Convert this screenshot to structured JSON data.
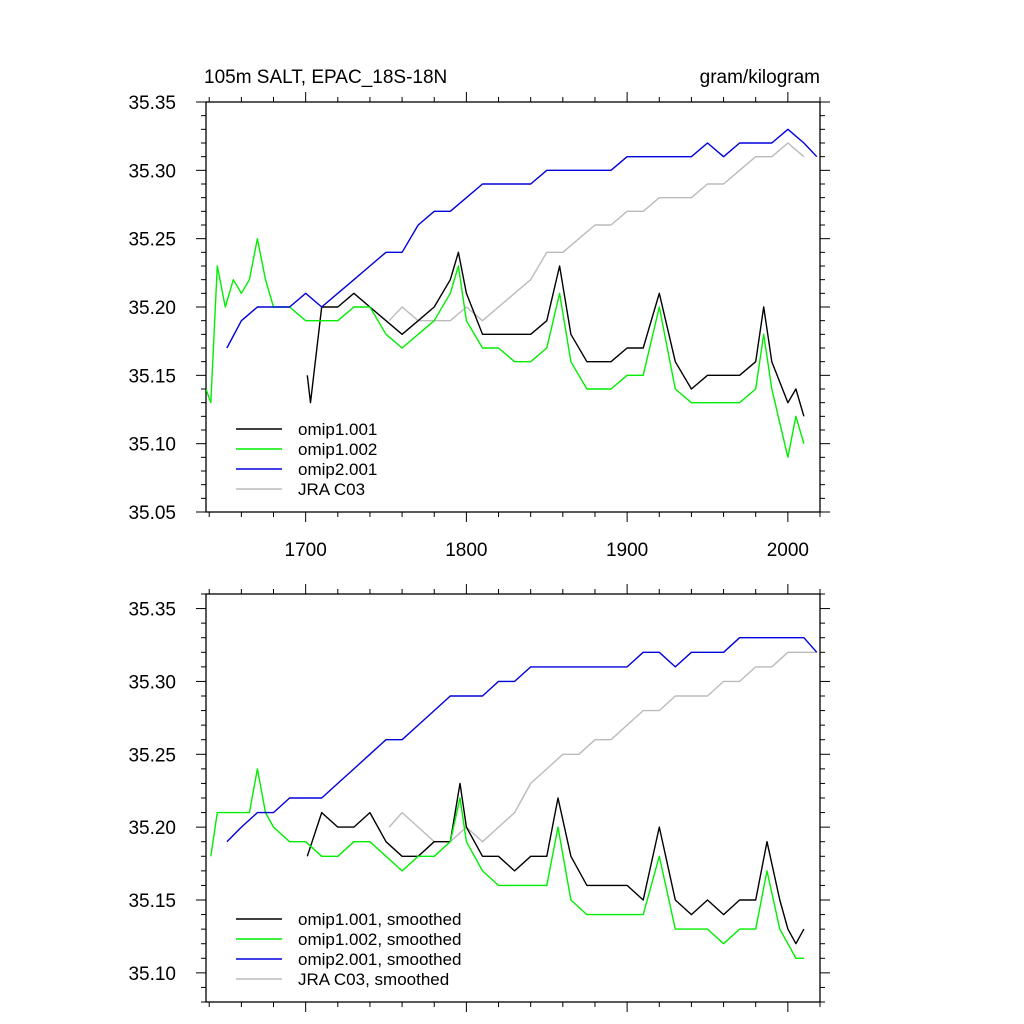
{
  "header": {
    "title": "105m SALT, EPAC_18S-18N",
    "units": "gram/kilogram"
  },
  "chart_data": [
    {
      "type": "line",
      "title": "105m SALT, EPAC_18S-18N",
      "units": "gram/kilogram",
      "xlim": [
        1638,
        2020
      ],
      "ylim": [
        35.05,
        35.35
      ],
      "xticks": [
        1700,
        1800,
        1900,
        2000
      ],
      "xtick_labels": [
        "1700",
        "1800",
        "1900",
        "2000"
      ],
      "yticks": [
        35.05,
        35.1,
        35.15,
        35.2,
        35.25,
        35.3,
        35.35
      ],
      "ytick_labels": [
        "35.05",
        "35.10",
        "35.15",
        "35.20",
        "35.25",
        "35.30",
        "35.35"
      ],
      "legend_position": "bottom-left",
      "series": [
        {
          "name": "omip1.001",
          "color": "#000000",
          "x": [
            1701,
            1703,
            1710,
            1720,
            1730,
            1740,
            1750,
            1760,
            1770,
            1780,
            1790,
            1795,
            1800,
            1810,
            1820,
            1830,
            1840,
            1850,
            1858,
            1865,
            1875,
            1880,
            1890,
            1900,
            1910,
            1920,
            1930,
            1940,
            1950,
            1960,
            1970,
            1980,
            1985,
            1990,
            2000,
            2005,
            2010
          ],
          "y": [
            35.15,
            35.13,
            35.2,
            35.2,
            35.21,
            35.2,
            35.19,
            35.18,
            35.19,
            35.2,
            35.22,
            35.24,
            35.21,
            35.18,
            35.18,
            35.18,
            35.18,
            35.19,
            35.23,
            35.18,
            35.16,
            35.16,
            35.16,
            35.17,
            35.17,
            35.21,
            35.16,
            35.14,
            35.15,
            35.15,
            35.15,
            35.16,
            35.2,
            35.16,
            35.13,
            35.14,
            35.12
          ]
        },
        {
          "name": "omip1.002",
          "color": "#00ee00",
          "x": [
            1638,
            1641,
            1645,
            1650,
            1655,
            1660,
            1665,
            1670,
            1675,
            1680,
            1690,
            1700,
            1710,
            1720,
            1730,
            1740,
            1750,
            1760,
            1770,
            1780,
            1790,
            1795,
            1800,
            1810,
            1820,
            1830,
            1840,
            1850,
            1858,
            1865,
            1875,
            1880,
            1890,
            1900,
            1910,
            1920,
            1930,
            1940,
            1950,
            1960,
            1970,
            1980,
            1985,
            1990,
            2000,
            2005,
            2010
          ],
          "y": [
            35.14,
            35.13,
            35.23,
            35.2,
            35.22,
            35.21,
            35.22,
            35.25,
            35.22,
            35.2,
            35.2,
            35.19,
            35.19,
            35.19,
            35.2,
            35.2,
            35.18,
            35.17,
            35.18,
            35.19,
            35.21,
            35.23,
            35.19,
            35.17,
            35.17,
            35.16,
            35.16,
            35.17,
            35.21,
            35.16,
            35.14,
            35.14,
            35.14,
            35.15,
            35.15,
            35.2,
            35.14,
            35.13,
            35.13,
            35.13,
            35.13,
            35.14,
            35.18,
            35.14,
            35.09,
            35.12,
            35.1
          ]
        },
        {
          "name": "omip2.001",
          "color": "#0000dd",
          "x": [
            1651,
            1660,
            1670,
            1680,
            1690,
            1700,
            1710,
            1720,
            1730,
            1740,
            1750,
            1760,
            1770,
            1780,
            1790,
            1800,
            1810,
            1820,
            1830,
            1840,
            1850,
            1860,
            1870,
            1880,
            1890,
            1900,
            1910,
            1920,
            1930,
            1940,
            1950,
            1960,
            1970,
            1980,
            1990,
            2000,
            2010,
            2018
          ],
          "y": [
            35.17,
            35.19,
            35.2,
            35.2,
            35.2,
            35.21,
            35.2,
            35.21,
            35.22,
            35.23,
            35.24,
            35.24,
            35.26,
            35.27,
            35.27,
            35.28,
            35.29,
            35.29,
            35.29,
            35.29,
            35.3,
            35.3,
            35.3,
            35.3,
            35.3,
            35.31,
            35.31,
            35.31,
            35.31,
            35.31,
            35.32,
            35.31,
            35.32,
            35.32,
            35.32,
            35.33,
            35.32,
            35.31
          ]
        },
        {
          "name": "JRA C03",
          "color": "#bbbbbb",
          "x": [
            1752,
            1760,
            1770,
            1780,
            1790,
            1800,
            1810,
            1820,
            1830,
            1840,
            1850,
            1860,
            1870,
            1880,
            1890,
            1900,
            1910,
            1920,
            1930,
            1940,
            1950,
            1960,
            1970,
            1980,
            1990,
            2000,
            2010
          ],
          "y": [
            35.19,
            35.2,
            35.19,
            35.19,
            35.19,
            35.2,
            35.19,
            35.2,
            35.21,
            35.22,
            35.24,
            35.24,
            35.25,
            35.26,
            35.26,
            35.27,
            35.27,
            35.28,
            35.28,
            35.28,
            35.29,
            35.29,
            35.3,
            35.31,
            35.31,
            35.32,
            35.31
          ]
        }
      ]
    },
    {
      "type": "line",
      "xlim": [
        1638,
        2020
      ],
      "ylim": [
        35.08,
        35.36
      ],
      "xticks": [
        1700,
        1800,
        1900,
        2000
      ],
      "xtick_labels": [],
      "yticks": [
        35.1,
        35.15,
        35.2,
        35.25,
        35.3,
        35.35
      ],
      "ytick_labels": [
        "35.10",
        "35.15",
        "35.20",
        "35.25",
        "35.30",
        "35.35"
      ],
      "legend_position": "bottom-left",
      "series": [
        {
          "name": "omip1.001, smoothed",
          "color": "#000000",
          "x": [
            1701,
            1710,
            1720,
            1730,
            1740,
            1750,
            1760,
            1770,
            1780,
            1790,
            1796,
            1800,
            1810,
            1820,
            1830,
            1840,
            1850,
            1857,
            1865,
            1875,
            1880,
            1890,
            1900,
            1910,
            1920,
            1930,
            1940,
            1950,
            1960,
            1970,
            1980,
            1987,
            1995,
            2000,
            2005,
            2010
          ],
          "y": [
            35.18,
            35.21,
            35.2,
            35.2,
            35.21,
            35.19,
            35.18,
            35.18,
            35.19,
            35.19,
            35.23,
            35.2,
            35.18,
            35.18,
            35.17,
            35.18,
            35.18,
            35.22,
            35.18,
            35.16,
            35.16,
            35.16,
            35.16,
            35.15,
            35.2,
            35.15,
            35.14,
            35.15,
            35.14,
            35.15,
            35.15,
            35.19,
            35.15,
            35.13,
            35.12,
            35.13
          ]
        },
        {
          "name": "omip1.002, smoothed",
          "color": "#00ee00",
          "x": [
            1641,
            1645,
            1650,
            1655,
            1660,
            1665,
            1670,
            1675,
            1680,
            1690,
            1700,
            1710,
            1720,
            1730,
            1740,
            1750,
            1760,
            1770,
            1780,
            1790,
            1796,
            1800,
            1810,
            1820,
            1830,
            1840,
            1850,
            1857,
            1865,
            1875,
            1880,
            1890,
            1900,
            1910,
            1920,
            1930,
            1940,
            1950,
            1960,
            1970,
            1980,
            1987,
            1995,
            2000,
            2005,
            2010
          ],
          "y": [
            35.18,
            35.21,
            35.21,
            35.21,
            35.21,
            35.21,
            35.24,
            35.21,
            35.2,
            35.19,
            35.19,
            35.18,
            35.18,
            35.19,
            35.19,
            35.18,
            35.17,
            35.18,
            35.18,
            35.19,
            35.22,
            35.19,
            35.17,
            35.16,
            35.16,
            35.16,
            35.16,
            35.2,
            35.15,
            35.14,
            35.14,
            35.14,
            35.14,
            35.14,
            35.18,
            35.13,
            35.13,
            35.13,
            35.12,
            35.13,
            35.13,
            35.17,
            35.13,
            35.12,
            35.11,
            35.11
          ]
        },
        {
          "name": "omip2.001, smoothed",
          "color": "#0000dd",
          "x": [
            1651,
            1660,
            1670,
            1680,
            1690,
            1700,
            1710,
            1720,
            1730,
            1740,
            1750,
            1760,
            1770,
            1780,
            1790,
            1800,
            1810,
            1820,
            1830,
            1840,
            1850,
            1860,
            1870,
            1880,
            1890,
            1900,
            1910,
            1920,
            1930,
            1940,
            1950,
            1960,
            1970,
            1980,
            1990,
            2000,
            2010,
            2018
          ],
          "y": [
            35.19,
            35.2,
            35.21,
            35.21,
            35.22,
            35.22,
            35.22,
            35.23,
            35.24,
            35.25,
            35.26,
            35.26,
            35.27,
            35.28,
            35.29,
            35.29,
            35.29,
            35.3,
            35.3,
            35.31,
            35.31,
            35.31,
            35.31,
            35.31,
            35.31,
            35.31,
            35.32,
            35.32,
            35.31,
            35.32,
            35.32,
            35.32,
            35.33,
            35.33,
            35.33,
            35.33,
            35.33,
            35.32
          ]
        },
        {
          "name": "JRA C03, smoothed",
          "color": "#bbbbbb",
          "x": [
            1752,
            1760,
            1770,
            1780,
            1790,
            1800,
            1810,
            1820,
            1830,
            1840,
            1850,
            1860,
            1870,
            1880,
            1890,
            1900,
            1910,
            1920,
            1930,
            1940,
            1950,
            1960,
            1970,
            1980,
            1990,
            2000,
            2010,
            2018
          ],
          "y": [
            35.2,
            35.21,
            35.2,
            35.19,
            35.19,
            35.2,
            35.19,
            35.2,
            35.21,
            35.23,
            35.24,
            35.25,
            35.25,
            35.26,
            35.26,
            35.27,
            35.28,
            35.28,
            35.29,
            35.29,
            35.29,
            35.3,
            35.3,
            35.31,
            35.31,
            35.32,
            35.32,
            35.32
          ]
        }
      ]
    }
  ]
}
